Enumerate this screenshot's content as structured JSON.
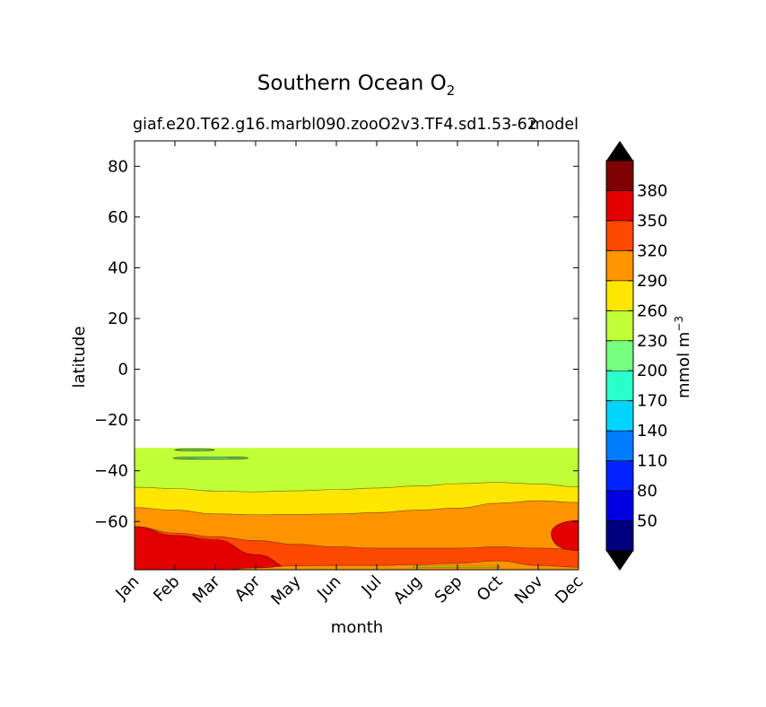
{
  "chart_data": {
    "type": "contourf",
    "title": "Southern Ocean O",
    "title_subscript": "2",
    "subtitle_left": "giaf.e20.T62.g16.marbl090.zooO2v3.TF4.sd1.53-62",
    "subtitle_right": "model",
    "xlabel": "month",
    "ylabel": "latitude",
    "x_categories": [
      "Jan",
      "Feb",
      "Mar",
      "Apr",
      "May",
      "Jun",
      "Jul",
      "Aug",
      "Sep",
      "Oct",
      "Nov",
      "Dec"
    ],
    "y_ticks": [
      80,
      60,
      40,
      20,
      0,
      -20,
      -40,
      -60
    ],
    "y_tick_labels": [
      "80",
      "60",
      "40",
      "20",
      "0",
      "−20",
      "−40",
      "−60"
    ],
    "ylim": [
      -79,
      90
    ],
    "data_lat_range": [
      -79,
      -31
    ],
    "colorbar": {
      "label": "mmol m",
      "label_superscript": "−3",
      "levels": [
        20,
        50,
        80,
        110,
        140,
        170,
        200,
        230,
        260,
        290,
        320,
        350,
        380,
        410
      ],
      "tick_labels": [
        "50",
        "80",
        "110",
        "140",
        "170",
        "200",
        "230",
        "260",
        "290",
        "320",
        "350",
        "380"
      ],
      "colors": [
        "#00007f",
        "#0000e3",
        "#0022ff",
        "#007cff",
        "#00d4ff",
        "#2affcc",
        "#77ff80",
        "#c1ff36",
        "#ffe600",
        "#ff9400",
        "#ff4800",
        "#e30000",
        "#7f0000"
      ],
      "extend": "both",
      "under_color": "#000000",
      "over_color": "#000000"
    },
    "regions": [
      {
        "level": "230-260",
        "color": "#c1ff36",
        "boundary_lat": [
          -41.5,
          -41.5,
          -41.2,
          -40.8,
          -40.3,
          -39.7,
          -39.2,
          -38.6,
          -38.0,
          -37.5,
          -37.4,
          -39.0
        ]
      },
      {
        "level": "260-290",
        "color": "#ffe600",
        "boundary_lat": [
          -46.5,
          -47.0,
          -48.0,
          -48.3,
          -47.9,
          -47.4,
          -46.8,
          -46.0,
          -45.1,
          -44.6,
          -45.2,
          -46.4
        ]
      },
      {
        "level": "290-320",
        "color": "#ff9400",
        "boundary_lat": [
          -54.5,
          -55.5,
          -57.0,
          -57.3,
          -57.2,
          -57.0,
          -56.5,
          -55.5,
          -54.7,
          -52.8,
          -51.8,
          -52.5
        ]
      },
      {
        "level": "320-350",
        "color": "#ff4800",
        "boundary_lat": [
          -62.0,
          -64.5,
          -66.0,
          -67.5,
          -69.0,
          -70.0,
          -70.5,
          -70.5,
          -70.5,
          -70.0,
          -70.5,
          -71.0
        ]
      },
      {
        "level": "350-380",
        "color": "#e30000",
        "boundary_lat": [
          -62.0,
          -65.5,
          -67.2,
          -73.0,
          -79.0,
          -79.0,
          -79.0,
          -79.0,
          -79.0,
          -79.0,
          -79.0,
          -79.0
        ]
      },
      {
        "level": "320-350 deep",
        "color": "#ff4800",
        "boundary_lat": [
          -79,
          -79,
          -79,
          -78.3,
          -77.4,
          -77.3,
          -77.3,
          -77.0,
          -76.5,
          -75.5,
          -77.3,
          -78.0
        ]
      },
      {
        "level": "350-380 east",
        "color": "#e30000",
        "boundary_lat": [
          -79,
          -79,
          -79,
          -79,
          -79,
          -79,
          -79,
          -79,
          -79,
          -79,
          -79,
          -79
        ]
      }
    ]
  }
}
